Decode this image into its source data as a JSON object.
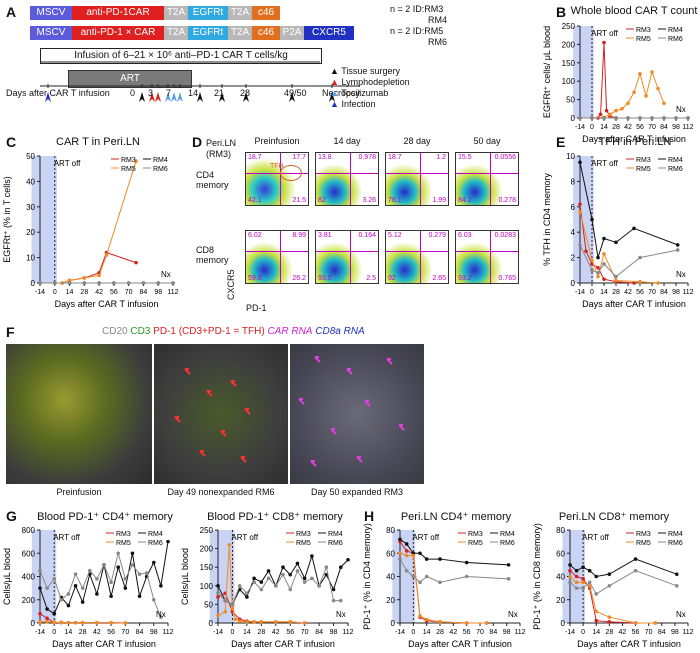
{
  "panels": {
    "A": "A",
    "B": "B",
    "C": "C",
    "D": "D",
    "E": "E",
    "F": "F",
    "G": "G",
    "H": "H"
  },
  "constructs": {
    "row1": [
      "MSCV",
      "anti-PD-1CAR",
      "T2A",
      "EGFRt",
      "T2A",
      "c46"
    ],
    "row2": [
      "MSCV",
      "anti-PD-1 × CAR",
      "T2A",
      "EGFRt",
      "T2A",
      "c46",
      "P2A",
      "CXCR5"
    ],
    "n1": "n = 2 ID:RM3",
    "n1b": "RM4",
    "n2": "n = 2 ID:RM5",
    "n2b": "RM6"
  },
  "timeline": {
    "infusion_text": "Infusion of 6–21 × 10⁶ anti–PD-1 CAR T cells/kg",
    "art": "ART",
    "axis_label": "Days after CAR T infusion",
    "days": [
      "0",
      "3",
      "7",
      "14",
      "21",
      "28",
      "49/50",
      "Necropsy"
    ],
    "legend": [
      "Tissue surgery",
      "Lymphodepletion",
      "Tocilizumab",
      "Infection"
    ]
  },
  "panelB": {
    "title": "Whole blood CAR T count",
    "ylabel": "EGFRt⁺ cells/ μL blood",
    "xlabel": "Days after CAR T infusion",
    "art": "ART off",
    "yticks": [
      "0",
      "50",
      "100",
      "150",
      "200",
      "250"
    ],
    "xticks": [
      "-14",
      "0",
      "14",
      "28",
      "42",
      "56",
      "70",
      "84",
      "98",
      "112"
    ],
    "legend": [
      "RM3",
      "RM4",
      "RM5",
      "RM6"
    ],
    "nx": "Nx"
  },
  "panelC": {
    "title": "CAR T in Peri.LN",
    "ylabel": "EGFRt⁺ (% in T cells)",
    "xlabel": "Days after CAR T infusion",
    "art": "ART off",
    "yticks": [
      "0",
      "10",
      "20",
      "30",
      "40",
      "50"
    ],
    "xticks": [
      "-14",
      "0",
      "14",
      "28",
      "42",
      "56",
      "70",
      "84",
      "98",
      "112"
    ],
    "legend": [
      "RM3",
      "RM4",
      "RM5",
      "RM6"
    ],
    "nx": "Nx"
  },
  "panelD": {
    "rowlabel": "Peri.LN (RM3)",
    "cols": [
      "Preinfusion",
      "14 day",
      "28 day",
      "50 day"
    ],
    "rows": [
      "CD4 memory",
      "CD8 memory"
    ],
    "yaxis": "CXCR5",
    "xaxis": "PD-1",
    "tfh": "TFH",
    "quads": [
      [
        [
          "18.7",
          "17.7",
          "42.1",
          "21.5"
        ],
        [
          "13.8",
          "0.978",
          "82",
          "3.26"
        ],
        [
          "18.7",
          "1.2",
          "78.1",
          "1.99"
        ],
        [
          "15.5",
          "0.0556",
          "84.2",
          "0.278"
        ]
      ],
      [
        [
          "6.02",
          "8.99",
          "59.8",
          "26.2"
        ],
        [
          "3.81",
          "0.164",
          "93.5",
          "2.5"
        ],
        [
          "5.12",
          "0.279",
          "92",
          "2.65"
        ],
        [
          "6.03",
          "0.0283",
          "93.2",
          "0.765"
        ]
      ]
    ]
  },
  "panelE": {
    "title": "TFH in Peri.LN",
    "ylabel": "% TFH in CD4 memory",
    "xlabel": "Days after CAR T infusion",
    "art": "ART off",
    "yticks": [
      "0",
      "2",
      "4",
      "6",
      "8",
      "10"
    ],
    "xticks": [
      "-14",
      "0",
      "14",
      "28",
      "42",
      "56",
      "70",
      "84",
      "98",
      "112"
    ],
    "legend": [
      "RM3",
      "RM4",
      "RM5",
      "RM6"
    ],
    "nx": "Nx"
  },
  "panelF": {
    "header": [
      "CD20",
      "CD3",
      "PD-1 (CD3+PD-1 = TFH)",
      "CAR RNA",
      "CD8a RNA"
    ],
    "captions": [
      "Preinfusion",
      "Day 49 nonexpanded RM6",
      "Day 50 expanded RM3"
    ]
  },
  "panelG": {
    "titles": [
      "Blood PD-1⁺ CD4⁺ memory",
      "Blood PD-1⁺ CD8⁺ memory"
    ],
    "ylabel": "Cells/μL blood",
    "xlabel": "Days after CAR T infusion",
    "art": "ART off",
    "yticks1": [
      "0",
      "200",
      "400",
      "600",
      "800"
    ],
    "yticks2": [
      "0",
      "50",
      "100",
      "150",
      "200",
      "250"
    ],
    "xticks": [
      "-14",
      "0",
      "14",
      "28",
      "42",
      "56",
      "70",
      "84",
      "98",
      "112"
    ],
    "legend": [
      "RM3",
      "RM4",
      "RM5",
      "RM6"
    ],
    "nx": "Nx"
  },
  "panelH": {
    "titles": [
      "Peri.LN CD4⁺ memory",
      "Peri.LN CD8⁺ memory"
    ],
    "ylabels": [
      "PD-1⁺ (% in CD4 memory)",
      "PD-1⁺ (% in CD8 memory)"
    ],
    "xlabel": "Days after CAR T infusion",
    "art": "ART off",
    "yticks1": [
      "0",
      "20",
      "40",
      "60",
      "80"
    ],
    "yticks2": [
      "0",
      "20",
      "40",
      "60",
      "80"
    ],
    "xticks": [
      "-14",
      "0",
      "14",
      "28",
      "42",
      "56",
      "70",
      "84",
      "98",
      "112"
    ],
    "legend": [
      "RM3",
      "RM4",
      "RM5",
      "RM6"
    ],
    "nx": "Nx"
  },
  "colors": {
    "rm3": "#d62020",
    "rm4": "#111111",
    "rm5": "#f08a24",
    "rm6": "#888888",
    "art": "#c9d4f5"
  },
  "chart_data": [
    {
      "id": "B",
      "type": "line",
      "xlim": [
        -14,
        112
      ],
      "ylim": [
        0,
        250
      ],
      "series": [
        {
          "name": "RM3",
          "x": [
            -14,
            0,
            7,
            10,
            14,
            17,
            21,
            28
          ],
          "y": [
            0,
            0,
            0,
            10,
            205,
            20,
            5,
            0
          ]
        },
        {
          "name": "RM4",
          "x": [
            -14,
            0,
            14,
            28,
            42,
            56,
            70,
            84,
            98,
            112
          ],
          "y": [
            0,
            0,
            0,
            0,
            0,
            0,
            0,
            0,
            0,
            0
          ]
        },
        {
          "name": "RM5",
          "x": [
            -14,
            0,
            14,
            21,
            28,
            35,
            42,
            49,
            56,
            63,
            70,
            77,
            84
          ],
          "y": [
            0,
            0,
            2,
            10,
            20,
            25,
            40,
            70,
            120,
            60,
            125,
            80,
            40
          ]
        },
        {
          "name": "RM6",
          "x": [
            -14,
            0,
            14,
            28,
            42,
            56,
            70,
            84,
            98,
            112
          ],
          "y": [
            0,
            0,
            0,
            0,
            0,
            0,
            0,
            0,
            0,
            0
          ]
        }
      ]
    },
    {
      "id": "C",
      "type": "line",
      "xlim": [
        -14,
        112
      ],
      "ylim": [
        0,
        50
      ],
      "series": [
        {
          "name": "RM3",
          "x": [
            -14,
            0,
            7,
            14,
            28,
            42,
            49,
            77
          ],
          "y": [
            0,
            0,
            0,
            1,
            2,
            4,
            12,
            8
          ]
        },
        {
          "name": "RM4",
          "x": [
            -14,
            0,
            14,
            28,
            42,
            56,
            70,
            84,
            98,
            112
          ],
          "y": [
            0,
            0,
            0,
            0,
            0,
            0,
            0,
            0,
            0,
            0
          ]
        },
        {
          "name": "RM5",
          "x": [
            -14,
            0,
            7,
            14,
            28,
            42,
            49,
            77
          ],
          "y": [
            0,
            0,
            0,
            1,
            2,
            3,
            11,
            48
          ]
        },
        {
          "name": "RM6",
          "x": [
            -14,
            0,
            14,
            28,
            42,
            56,
            70,
            84,
            98,
            112
          ],
          "y": [
            0,
            0,
            0,
            0,
            0,
            0,
            0,
            0,
            0,
            0
          ]
        }
      ]
    },
    {
      "id": "E",
      "type": "line",
      "xlim": [
        -14,
        112
      ],
      "ylim": [
        0,
        10
      ],
      "series": [
        {
          "name": "RM3",
          "x": [
            -14,
            -7,
            0,
            7,
            14,
            28,
            49
          ],
          "y": [
            6.2,
            2.5,
            1.5,
            1.2,
            0.3,
            0.1,
            0
          ]
        },
        {
          "name": "RM4",
          "x": [
            -14,
            0,
            7,
            14,
            28,
            49,
            100
          ],
          "y": [
            9.5,
            5,
            2,
            3.5,
            3.2,
            4.3,
            3
          ]
        },
        {
          "name": "RM5",
          "x": [
            -14,
            0,
            7,
            14,
            28,
            56,
            77
          ],
          "y": [
            5.6,
            1.8,
            0.5,
            2.3,
            0.2,
            0.1,
            0
          ]
        },
        {
          "name": "RM6",
          "x": [
            -14,
            0,
            7,
            14,
            28,
            56,
            100
          ],
          "y": [
            3,
            1,
            0.8,
            1.5,
            0.5,
            2,
            2.6
          ]
        }
      ]
    },
    {
      "id": "G1",
      "type": "line",
      "xlim": [
        -14,
        112
      ],
      "ylim": [
        0,
        800
      ],
      "series": [
        {
          "name": "RM3",
          "x": [
            -14,
            -7,
            0,
            7,
            14,
            21,
            28,
            42,
            56,
            70
          ],
          "y": [
            80,
            40,
            5,
            5,
            3,
            3,
            3,
            3,
            3,
            0
          ]
        },
        {
          "name": "RM4",
          "x": [
            -14,
            -7,
            0,
            7,
            14,
            21,
            28,
            35,
            42,
            49,
            56,
            63,
            70,
            77,
            84,
            91,
            98,
            105,
            112
          ],
          "y": [
            300,
            120,
            80,
            220,
            150,
            320,
            180,
            420,
            250,
            500,
            230,
            480,
            300,
            600,
            230,
            400,
            520,
            320,
            700
          ]
        },
        {
          "name": "RM5",
          "x": [
            -14,
            -7,
            0,
            7,
            14,
            21,
            28,
            42,
            56,
            70
          ],
          "y": [
            10,
            10,
            5,
            3,
            3,
            3,
            3,
            3,
            3,
            0
          ]
        },
        {
          "name": "RM6",
          "x": [
            -14,
            -7,
            0,
            7,
            14,
            21,
            28,
            35,
            42,
            49,
            56,
            63,
            70,
            77,
            84,
            91,
            98,
            105
          ],
          "y": [
            450,
            300,
            380,
            200,
            250,
            420,
            300,
            450,
            380,
            500,
            350,
            600,
            380,
            500,
            420,
            430,
            200,
            50
          ]
        }
      ]
    },
    {
      "id": "G2",
      "type": "line",
      "xlim": [
        -14,
        112
      ],
      "ylim": [
        0,
        250
      ],
      "series": [
        {
          "name": "RM3",
          "x": [
            -14,
            -7,
            0,
            7,
            14,
            21,
            28,
            42,
            56,
            70
          ],
          "y": [
            70,
            80,
            30,
            10,
            5,
            3,
            3,
            3,
            3,
            0
          ]
        },
        {
          "name": "RM4",
          "x": [
            -14,
            -7,
            0,
            7,
            14,
            21,
            28,
            35,
            42,
            49,
            56,
            63,
            70,
            77,
            84,
            91,
            98,
            105,
            112
          ],
          "y": [
            100,
            60,
            50,
            90,
            70,
            120,
            110,
            140,
            100,
            150,
            130,
            160,
            120,
            180,
            100,
            130,
            90,
            150,
            170
          ]
        },
        {
          "name": "RM5",
          "x": [
            -14,
            -7,
            -3,
            0,
            3,
            7,
            14,
            21,
            28,
            42,
            56,
            70
          ],
          "y": [
            20,
            30,
            210,
            40,
            10,
            5,
            3,
            3,
            3,
            3,
            3,
            0
          ]
        },
        {
          "name": "RM6",
          "x": [
            -14,
            -7,
            0,
            7,
            14,
            21,
            28,
            35,
            42,
            49,
            56,
            63,
            70,
            77,
            84,
            91,
            98,
            105
          ],
          "y": [
            80,
            60,
            50,
            100,
            80,
            110,
            90,
            120,
            100,
            130,
            90,
            140,
            110,
            120,
            100,
            150,
            60,
            60
          ]
        }
      ]
    },
    {
      "id": "H1",
      "type": "line",
      "xlim": [
        -14,
        112
      ],
      "ylim": [
        0,
        80
      ],
      "series": [
        {
          "name": "RM3",
          "x": [
            -14,
            -7,
            0,
            7,
            14,
            28,
            56,
            77
          ],
          "y": [
            70,
            62,
            60,
            5,
            2,
            1,
            0,
            0
          ]
        },
        {
          "name": "RM4",
          "x": [
            -14,
            -7,
            0,
            7,
            14,
            28,
            56,
            100
          ],
          "y": [
            72,
            68,
            60,
            60,
            55,
            55,
            52,
            50
          ]
        },
        {
          "name": "RM5",
          "x": [
            -14,
            -7,
            0,
            7,
            14,
            28,
            56,
            77
          ],
          "y": [
            60,
            58,
            58,
            6,
            3,
            1,
            0,
            0
          ]
        },
        {
          "name": "RM6",
          "x": [
            -14,
            -7,
            0,
            7,
            14,
            28,
            56,
            100
          ],
          "y": [
            55,
            45,
            40,
            35,
            40,
            35,
            40,
            38
          ]
        }
      ]
    },
    {
      "id": "H2",
      "type": "line",
      "xlim": [
        -14,
        112
      ],
      "ylim": [
        0,
        80
      ],
      "series": [
        {
          "name": "RM3",
          "x": [
            -14,
            -7,
            0,
            7,
            14,
            28,
            56,
            77
          ],
          "y": [
            45,
            40,
            38,
            30,
            2,
            1,
            0,
            0
          ]
        },
        {
          "name": "RM4",
          "x": [
            -14,
            -7,
            0,
            7,
            14,
            28,
            56,
            100
          ],
          "y": [
            50,
            45,
            48,
            45,
            40,
            42,
            55,
            42
          ]
        },
        {
          "name": "RM5",
          "x": [
            -14,
            -7,
            0,
            7,
            14,
            28,
            56,
            77
          ],
          "y": [
            40,
            35,
            35,
            32,
            10,
            5,
            0,
            0
          ]
        },
        {
          "name": "RM6",
          "x": [
            -14,
            -7,
            0,
            7,
            14,
            28,
            56,
            100
          ],
          "y": [
            35,
            30,
            30,
            35,
            25,
            32,
            45,
            32
          ]
        }
      ]
    }
  ]
}
